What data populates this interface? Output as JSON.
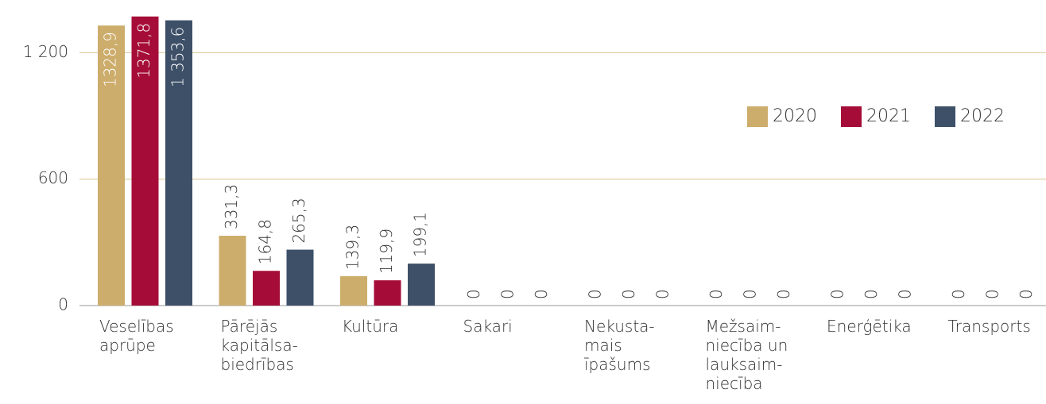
{
  "chart_data": {
    "type": "bar",
    "categories": [
      "Veselības\naprūpe",
      "Pārējās\nkapitālsa-\nbiedrības",
      "Kultūra",
      "Sakari",
      "Nekusta-\nmais\nīpašums",
      "Mežsaim-\nniecība un\nlauksaim-\nniecība",
      "Enerģētika",
      "Transports"
    ],
    "series": [
      {
        "name": "2020",
        "color": "#cdad6c",
        "values": [
          1328.9,
          331.3,
          139.3,
          0,
          0,
          0,
          0,
          0
        ],
        "value_labels": [
          "1328,9",
          "331,3",
          "139,3",
          "0",
          "0",
          "0",
          "0",
          "0"
        ]
      },
      {
        "name": "2021",
        "color": "#a50d38",
        "values": [
          1371.8,
          164.8,
          119.9,
          0,
          0,
          0,
          0,
          0
        ],
        "value_labels": [
          "1371,8",
          "164,8",
          "119,9",
          "0",
          "0",
          "0",
          "0",
          "0"
        ]
      },
      {
        "name": "2022",
        "color": "#3d5068",
        "values": [
          1353.6,
          265.3,
          199.1,
          0,
          0,
          0,
          0,
          0
        ],
        "value_labels": [
          "1 353,6",
          "265,3",
          "199,1",
          "0",
          "0",
          "0",
          "0",
          "0"
        ]
      }
    ],
    "ylim": [
      0,
      1450
    ],
    "yticks": [
      0,
      600,
      {
        "value": 1200,
        "label": "1 200"
      }
    ],
    "grid": true,
    "legend": "upper right"
  }
}
